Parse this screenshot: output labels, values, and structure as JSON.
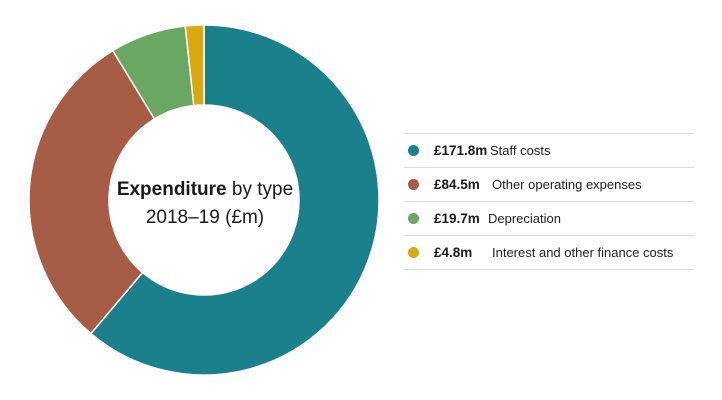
{
  "chart_data": {
    "type": "pie",
    "title_bold": "Expenditure",
    "title_rest": " by type",
    "subtitle": "2018–19 (£m)",
    "series": [
      {
        "name": "Staff costs",
        "value": 171.8,
        "display": "£171.8m",
        "color": "#1a808c"
      },
      {
        "name": "Other operating expenses",
        "value": 84.5,
        "display": "£84.5m",
        "color": "#a65c45"
      },
      {
        "name": "Depreciation",
        "value": 19.7,
        "display": "£19.7m",
        "color": "#6aa763"
      },
      {
        "name": "Interest and other finance costs",
        "value": 4.8,
        "display": "£4.8m",
        "color": "#d9a90e"
      }
    ]
  }
}
